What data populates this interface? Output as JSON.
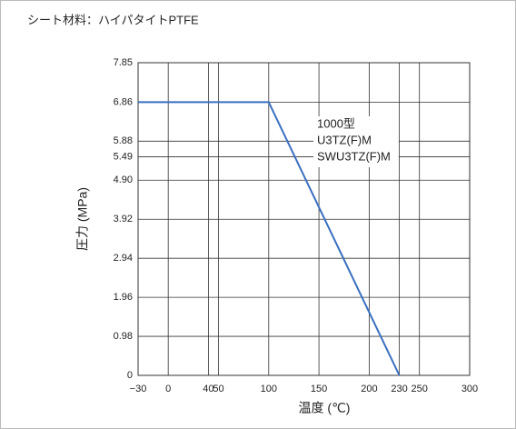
{
  "chart_data": {
    "type": "line",
    "title": "シート材料：ハイパタイトPTFE",
    "x_label": "温度 (℃)",
    "y_label": "圧力 (MPa)",
    "annotations": [
      "1000型",
      "U3TZ(F)M",
      "SWU3TZ(F)M"
    ],
    "x": [
      -30,
      100,
      230
    ],
    "series": [
      {
        "color": "#3a6fc0",
        "values": [
          6.86,
          6.86,
          0
        ]
      }
    ],
    "xlim": [
      -30,
      300
    ],
    "ylim": [
      0,
      7.85
    ],
    "xticks": [
      {
        "value": -30,
        "label": "−30"
      },
      0,
      40,
      50,
      100,
      150,
      200,
      230,
      250,
      300
    ],
    "yticks": [
      0,
      0.98,
      1.96,
      2.94,
      3.92,
      {
        "value": 4.9,
        "label": "4.90"
      },
      5.49,
      5.88,
      6.86,
      7.85
    ],
    "grid": true
  }
}
